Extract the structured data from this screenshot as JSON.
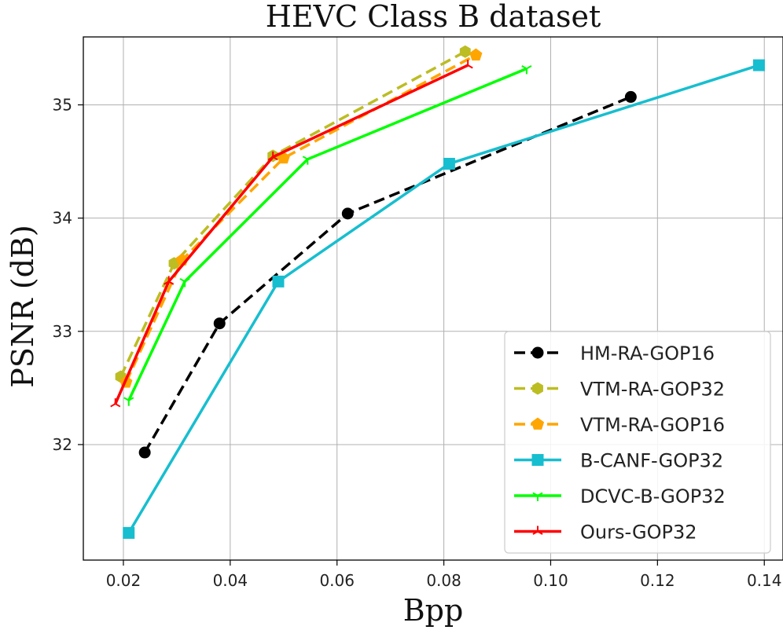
{
  "chart_data": {
    "type": "line",
    "title": "HEVC Class B dataset",
    "xlabel": "Bpp",
    "ylabel": "PSNR (dB)",
    "xlim": [
      0.0125,
      0.1435
    ],
    "ylim": [
      30.98,
      35.6
    ],
    "xticks": [
      0.02,
      0.04,
      0.06,
      0.08,
      0.1,
      0.12,
      0.14
    ],
    "xtick_labels": [
      "0.02",
      "0.04",
      "0.06",
      "0.08",
      "0.10",
      "0.12",
      "0.14"
    ],
    "yticks": [
      32,
      33,
      34,
      35
    ],
    "ytick_labels": [
      "32",
      "33",
      "34",
      "35"
    ],
    "grid": true,
    "legend_position": "bottom-right",
    "series": [
      {
        "name": "HM-RA-GOP16",
        "color": "#000000",
        "line_style": "dashed",
        "marker": "circle",
        "x": [
          0.024,
          0.038,
          0.062,
          0.115
        ],
        "y": [
          31.93,
          33.07,
          34.04,
          35.07
        ]
      },
      {
        "name": "VTM-RA-GOP32",
        "color": "#bcbd22",
        "line_style": "dashed",
        "marker": "hexagon",
        "x": [
          0.0195,
          0.0295,
          0.048,
          0.084
        ],
        "y": [
          32.6,
          33.6,
          34.55,
          35.47
        ]
      },
      {
        "name": "VTM-RA-GOP16",
        "color": "#ffa500",
        "line_style": "dashed",
        "marker": "pentagon",
        "x": [
          0.0205,
          0.031,
          0.05,
          0.086
        ],
        "y": [
          32.55,
          33.63,
          34.53,
          35.44
        ]
      },
      {
        "name": "B-CANF-GOP32",
        "color": "#17becf",
        "line_style": "solid",
        "marker": "square",
        "x": [
          0.021,
          0.049,
          0.081,
          0.139
        ],
        "y": [
          31.22,
          33.44,
          34.48,
          35.35
        ]
      },
      {
        "name": "DCVC-B-GOP32",
        "color": "#00ff00",
        "line_style": "solid",
        "marker": "tri_down",
        "x": [
          0.021,
          0.0315,
          0.0545,
          0.0955
        ],
        "y": [
          32.39,
          33.44,
          34.52,
          35.32
        ]
      },
      {
        "name": "Ours-GOP32",
        "color": "#ff0000",
        "line_style": "solid",
        "marker": "tri_up",
        "x": [
          0.0185,
          0.0285,
          0.048,
          0.0845
        ],
        "y": [
          32.36,
          33.44,
          34.54,
          35.35
        ]
      }
    ]
  }
}
